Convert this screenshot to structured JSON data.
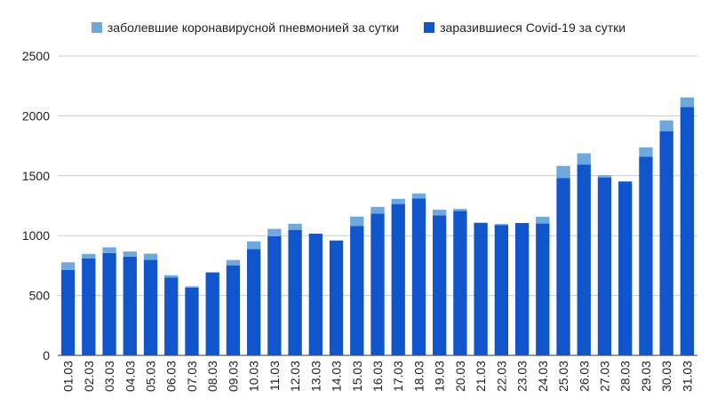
{
  "chart_data": {
    "type": "bar",
    "stacked": true,
    "title": "",
    "xlabel": "",
    "ylabel": "",
    "ylim": [
      0,
      2500
    ],
    "yticks": [
      0,
      500,
      1000,
      1500,
      2000,
      2500
    ],
    "grid": true,
    "legend_position": "top",
    "categories": [
      "01.03",
      "02.03",
      "03.03",
      "04.03",
      "05.03",
      "06.03",
      "07.03",
      "08.03",
      "09.03",
      "10.03",
      "11.03",
      "12.03",
      "13.03",
      "14.03",
      "15.03",
      "16.03",
      "17.03",
      "18.03",
      "19.03",
      "20.03",
      "21.03",
      "22.03",
      "23.03",
      "24.03",
      "25.03",
      "26.03",
      "27.03",
      "28.03",
      "29.03",
      "30.03",
      "31.03"
    ],
    "series": [
      {
        "name": "заразившиеся Covid-19 за сутки",
        "color": "#1155cc",
        "values": [
          714,
          809,
          855,
          824,
          797,
          650,
          566,
          693,
          752,
          887,
          994,
          1046,
          1016,
          959,
          1080,
          1183,
          1264,
          1311,
          1168,
          1205,
          1107,
          1087,
          1105,
          1101,
          1481,
          1594,
          1486,
          1452,
          1659,
          1872,
          2073
        ]
      },
      {
        "name": "заболевшие коронавирусной пневмонией за сутки",
        "color": "#6fa8dc",
        "values": [
          63,
          38,
          47,
          43,
          52,
          19,
          10,
          0,
          44,
          65,
          62,
          53,
          0,
          0,
          79,
          57,
          43,
          41,
          48,
          18,
          0,
          10,
          0,
          56,
          101,
          93,
          18,
          0,
          78,
          90,
          81
        ]
      }
    ]
  }
}
